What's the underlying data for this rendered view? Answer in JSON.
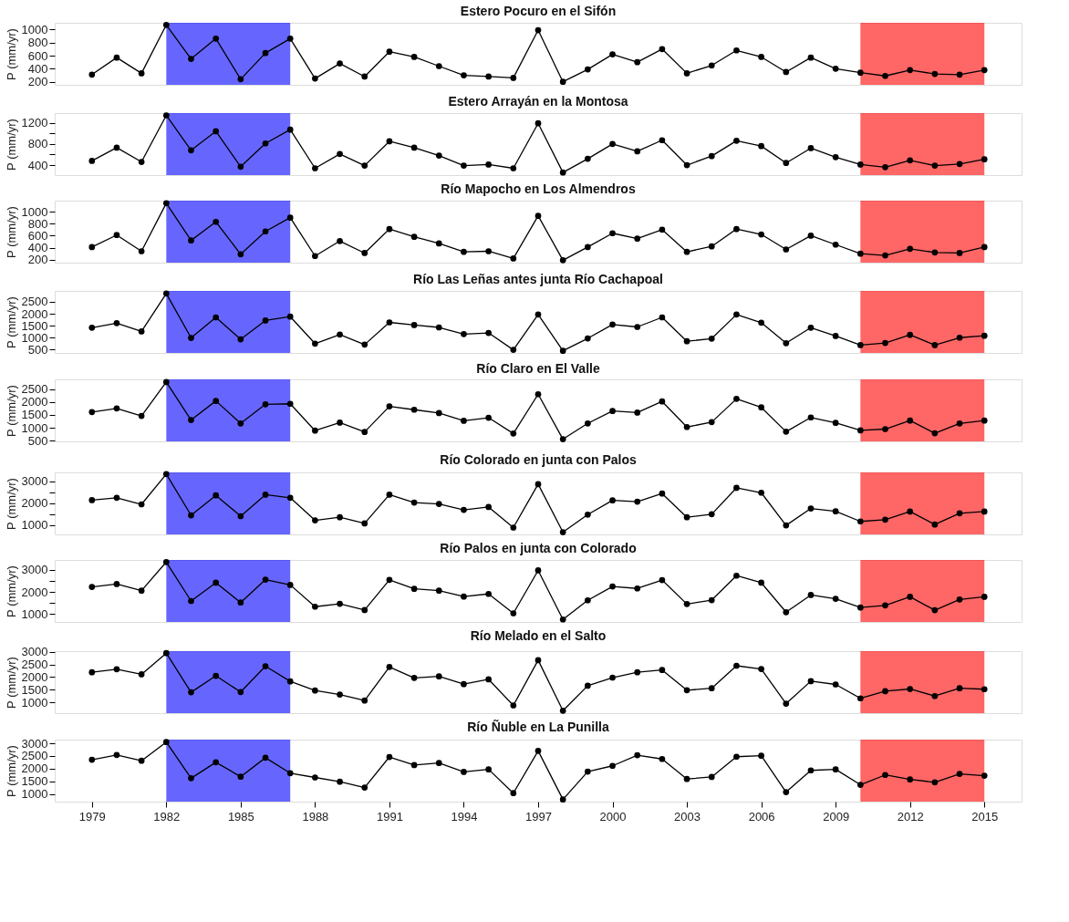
{
  "chart_data": [
    {
      "type": "line",
      "title": "Estero Pocuro en el Sifón",
      "ylabel": "P (mm/yr)",
      "marker": "circle",
      "line_style": "solid",
      "tick_labels": "y",
      "xlim": [
        1977.5,
        2016.5
      ],
      "ylim": [
        154,
        1102
      ],
      "yticks": [
        200,
        400,
        600,
        800,
        1000
      ],
      "x": [
        1979,
        1980,
        1981,
        1982,
        1983,
        1984,
        1985,
        1986,
        1987,
        1988,
        1989,
        1990,
        1991,
        1992,
        1993,
        1994,
        1995,
        1996,
        1997,
        1998,
        1999,
        2000,
        2001,
        2002,
        2003,
        2004,
        2005,
        2006,
        2007,
        2008,
        2009,
        2010,
        2011,
        2012,
        2013,
        2014,
        2015
      ],
      "series": [
        {
          "color": "#000000",
          "values": [
            310,
            570,
            330,
            1070,
            550,
            860,
            240,
            640,
            860,
            250,
            480,
            280,
            660,
            580,
            440,
            300,
            280,
            260,
            990,
            200,
            390,
            620,
            500,
            700,
            330,
            450,
            680,
            580,
            350,
            570,
            400,
            340,
            290,
            380,
            320,
            310,
            380
          ]
        }
      ],
      "bands": [
        {
          "axis": "x",
          "from": 1982,
          "to": 1987,
          "color": "#0000ff"
        },
        {
          "axis": "x",
          "from": 2010,
          "to": 2015,
          "color": "#ff0000"
        }
      ]
    },
    {
      "type": "line",
      "title": "Estero Arrayán en la Montosa",
      "ylabel": "P (mm/yr)",
      "marker": "circle",
      "line_style": "solid",
      "tick_labels": "y",
      "xlim": [
        1977.5,
        2016.5
      ],
      "ylim": [
        211,
        1383
      ],
      "yticks": [
        400,
        {
          "value": 600,
          "label": null
        },
        800,
        {
          "value": 1000,
          "label": null
        },
        1200
      ],
      "x": [
        1979,
        1980,
        1981,
        1982,
        1983,
        1984,
        1985,
        1986,
        1987,
        1988,
        1989,
        1990,
        1991,
        1992,
        1993,
        1994,
        1995,
        1996,
        1997,
        1998,
        1999,
        2000,
        2001,
        2002,
        2003,
        2004,
        2005,
        2006,
        2007,
        2008,
        2009,
        2010,
        2011,
        2012,
        2013,
        2014,
        2015
      ],
      "series": [
        {
          "color": "#000000",
          "values": [
            480,
            730,
            460,
            1340,
            680,
            1040,
            370,
            810,
            1070,
            340,
            610,
            390,
            850,
            730,
            580,
            390,
            410,
            340,
            1190,
            260,
            520,
            800,
            660,
            870,
            400,
            570,
            860,
            760,
            440,
            720,
            550,
            410,
            360,
            490,
            390,
            420,
            510
          ]
        }
      ],
      "bands": [
        {
          "axis": "x",
          "from": 1982,
          "to": 1987,
          "color": "#0000ff"
        },
        {
          "axis": "x",
          "from": 2010,
          "to": 2015,
          "color": "#ff0000"
        }
      ]
    },
    {
      "type": "line",
      "title": "Río Mapocho en Los Almendros",
      "ylabel": "P (mm/yr)",
      "marker": "circle",
      "line_style": "solid",
      "tick_labels": "y",
      "xlim": [
        1977.5,
        2016.5
      ],
      "ylim": [
        150,
        1183
      ],
      "yticks": [
        200,
        400,
        600,
        800,
        1000
      ],
      "x": [
        1979,
        1980,
        1981,
        1982,
        1983,
        1984,
        1985,
        1986,
        1987,
        1988,
        1989,
        1990,
        1991,
        1992,
        1993,
        1994,
        1995,
        1996,
        1997,
        1998,
        1999,
        2000,
        2001,
        2002,
        2003,
        2004,
        2005,
        2006,
        2007,
        2008,
        2009,
        2010,
        2011,
        2012,
        2013,
        2014,
        2015
      ],
      "series": [
        {
          "color": "#000000",
          "values": [
            410,
            610,
            340,
            1140,
            520,
            830,
            290,
            670,
            900,
            260,
            510,
            310,
            710,
            580,
            470,
            330,
            340,
            220,
            930,
            190,
            410,
            640,
            550,
            700,
            330,
            420,
            710,
            620,
            370,
            600,
            450,
            300,
            270,
            380,
            320,
            310,
            410
          ]
        }
      ],
      "bands": [
        {
          "axis": "x",
          "from": 1982,
          "to": 1987,
          "color": "#0000ff"
        },
        {
          "axis": "x",
          "from": 2010,
          "to": 2015,
          "color": "#ff0000"
        }
      ]
    },
    {
      "type": "line",
      "title": "Río Las Leñas antes junta Río Cachapoal",
      "ylabel": "P (mm/yr)",
      "marker": "circle",
      "line_style": "solid",
      "tick_labels": "y",
      "xlim": [
        1977.5,
        2016.5
      ],
      "ylim": [
        361,
        2958
      ],
      "yticks": [
        500,
        1000,
        1500,
        2000,
        2500
      ],
      "x": [
        1979,
        1980,
        1981,
        1982,
        1983,
        1984,
        1985,
        1986,
        1987,
        1988,
        1989,
        1990,
        1991,
        1992,
        1993,
        1994,
        1995,
        1996,
        1997,
        1998,
        1999,
        2000,
        2001,
        2002,
        2003,
        2004,
        2005,
        2006,
        2007,
        2008,
        2009,
        2010,
        2011,
        2012,
        2013,
        2014,
        2015
      ],
      "series": [
        {
          "color": "#000000",
          "values": [
            1420,
            1610,
            1260,
            2850,
            990,
            1850,
            930,
            1720,
            1880,
            750,
            1130,
            710,
            1640,
            1530,
            1430,
            1150,
            1200,
            490,
            1970,
            450,
            970,
            1550,
            1450,
            1850,
            850,
            960,
            1970,
            1630,
            770,
            1420,
            1070,
            690,
            780,
            1120,
            690,
            1000,
            1080
          ]
        }
      ],
      "bands": [
        {
          "axis": "x",
          "from": 1982,
          "to": 1987,
          "color": "#0000ff"
        },
        {
          "axis": "x",
          "from": 2010,
          "to": 2015,
          "color": "#ff0000"
        }
      ]
    },
    {
      "type": "line",
      "title": "Río Claro en El Valle",
      "ylabel": "P (mm/yr)",
      "marker": "circle",
      "line_style": "solid",
      "tick_labels": "y",
      "xlim": [
        1977.5,
        2016.5
      ],
      "ylim": [
        474,
        2874
      ],
      "yticks": [
        500,
        1000,
        1500,
        2000,
        2500
      ],
      "x": [
        1979,
        1980,
        1981,
        1982,
        1983,
        1984,
        1985,
        1986,
        1987,
        1988,
        1989,
        1990,
        1991,
        1992,
        1993,
        1994,
        1995,
        1996,
        1997,
        1998,
        1999,
        2000,
        2001,
        2002,
        2003,
        2004,
        2005,
        2006,
        2007,
        2008,
        2009,
        2010,
        2011,
        2012,
        2013,
        2014,
        2015
      ],
      "series": [
        {
          "color": "#000000",
          "values": [
            1610,
            1750,
            1460,
            2770,
            1300,
            2040,
            1170,
            1910,
            1930,
            890,
            1200,
            840,
            1830,
            1700,
            1570,
            1270,
            1390,
            780,
            2300,
            560,
            1170,
            1650,
            1590,
            2020,
            1030,
            1220,
            2120,
            1790,
            850,
            1400,
            1190,
            900,
            950,
            1280,
            790,
            1170,
            1280
          ]
        }
      ],
      "bands": [
        {
          "axis": "x",
          "from": 1982,
          "to": 1987,
          "color": "#0000ff"
        },
        {
          "axis": "x",
          "from": 2010,
          "to": 2015,
          "color": "#ff0000"
        }
      ]
    },
    {
      "type": "line",
      "title": "Río Colorado en junta con Palos",
      "ylabel": "P (mm/yr)",
      "marker": "circle",
      "line_style": "solid",
      "tick_labels": "y",
      "xlim": [
        1977.5,
        2016.5
      ],
      "ylim": [
        578,
        3406
      ],
      "yticks": [
        1000,
        {
          "value": 1500,
          "label": null
        },
        2000,
        {
          "value": 2500,
          "label": null
        },
        3000
      ],
      "x": [
        1979,
        1980,
        1981,
        1982,
        1983,
        1984,
        1985,
        1986,
        1987,
        1988,
        1989,
        1990,
        1991,
        1992,
        1993,
        1994,
        1995,
        1996,
        1997,
        1998,
        1999,
        2000,
        2001,
        2002,
        2003,
        2004,
        2005,
        2006,
        2007,
        2008,
        2009,
        2010,
        2011,
        2012,
        2013,
        2014,
        2015
      ],
      "series": [
        {
          "color": "#000000",
          "values": [
            2140,
            2250,
            1950,
            3330,
            1450,
            2360,
            1410,
            2390,
            2250,
            1220,
            1360,
            1080,
            2390,
            2030,
            1970,
            1700,
            1830,
            890,
            2870,
            680,
            1480,
            2130,
            2070,
            2440,
            1360,
            1500,
            2700,
            2480,
            990,
            1760,
            1630,
            1170,
            1250,
            1620,
            1030,
            1540,
            1620
          ]
        }
      ],
      "bands": [
        {
          "axis": "x",
          "from": 1982,
          "to": 1987,
          "color": "#0000ff"
        },
        {
          "axis": "x",
          "from": 2010,
          "to": 2015,
          "color": "#ff0000"
        }
      ]
    },
    {
      "type": "line",
      "title": "Río Palos en junta con Colorado",
      "ylabel": "P (mm/yr)",
      "marker": "circle",
      "line_style": "solid",
      "tick_labels": "y",
      "xlim": [
        1977.5,
        2016.5
      ],
      "ylim": [
        636,
        3455
      ],
      "yticks": [
        1000,
        {
          "value": 1500,
          "label": null
        },
        2000,
        {
          "value": 2500,
          "label": null
        },
        3000
      ],
      "x": [
        1979,
        1980,
        1981,
        1982,
        1983,
        1984,
        1985,
        1986,
        1987,
        1988,
        1989,
        1990,
        1991,
        1992,
        1993,
        1994,
        1995,
        1996,
        1997,
        1998,
        1999,
        2000,
        2001,
        2002,
        2003,
        2004,
        2005,
        2006,
        2007,
        2008,
        2009,
        2010,
        2011,
        2012,
        2013,
        2014,
        2015
      ],
      "series": [
        {
          "color": "#000000",
          "values": [
            2230,
            2360,
            2060,
            3360,
            1590,
            2420,
            1520,
            2560,
            2320,
            1330,
            1460,
            1180,
            2550,
            2140,
            2060,
            1790,
            1910,
            1030,
            2980,
            750,
            1620,
            2250,
            2160,
            2540,
            1450,
            1630,
            2740,
            2420,
            1080,
            1860,
            1690,
            1290,
            1390,
            1780,
            1170,
            1660,
            1780
          ]
        }
      ],
      "bands": [
        {
          "axis": "x",
          "from": 1982,
          "to": 1987,
          "color": "#0000ff"
        },
        {
          "axis": "x",
          "from": 2010,
          "to": 2015,
          "color": "#ff0000"
        }
      ]
    },
    {
      "type": "line",
      "title": "Río Melado en el Salto",
      "ylabel": "P (mm/yr)",
      "marker": "circle",
      "line_style": "solid",
      "tick_labels": "y",
      "xlim": [
        1977.5,
        2016.5
      ],
      "ylim": [
        573,
        3027
      ],
      "yticks": [
        1000,
        1500,
        2000,
        2500,
        3000
      ],
      "x": [
        1979,
        1980,
        1981,
        1982,
        1983,
        1984,
        1985,
        1986,
        1987,
        1988,
        1989,
        1990,
        1991,
        1992,
        1993,
        1994,
        1995,
        1996,
        1997,
        1998,
        1999,
        2000,
        2001,
        2002,
        2003,
        2004,
        2005,
        2006,
        2007,
        2008,
        2009,
        2010,
        2011,
        2012,
        2013,
        2014,
        2015
      ],
      "series": [
        {
          "color": "#000000",
          "values": [
            2190,
            2310,
            2110,
            2950,
            1400,
            2050,
            1410,
            2430,
            1830,
            1470,
            1310,
            1070,
            2400,
            1970,
            2030,
            1720,
            1910,
            880,
            2670,
            670,
            1660,
            1980,
            2190,
            2280,
            1480,
            1560,
            2450,
            2320,
            950,
            1840,
            1710,
            1160,
            1440,
            1530,
            1250,
            1560,
            1520
          ]
        }
      ],
      "bands": [
        {
          "axis": "x",
          "from": 1982,
          "to": 1987,
          "color": "#0000ff"
        },
        {
          "axis": "x",
          "from": 2010,
          "to": 2015,
          "color": "#ff0000"
        }
      ]
    },
    {
      "type": "line",
      "title": "Río Ñuble en La Punilla",
      "ylabel": "P (mm/yr)",
      "marker": "circle",
      "line_style": "solid",
      "xlim": [
        1977.5,
        2016.5
      ],
      "ylim": [
        695,
        3146
      ],
      "yticks": [
        1000,
        1500,
        2000,
        2500,
        3000
      ],
      "xticks": [
        1979,
        1982,
        1985,
        1988,
        1991,
        1994,
        1997,
        2000,
        2003,
        2006,
        2009,
        2012,
        2015
      ],
      "x": [
        1979,
        1980,
        1981,
        1982,
        1983,
        1984,
        1985,
        1986,
        1987,
        1988,
        1989,
        1990,
        1991,
        1992,
        1993,
        1994,
        1995,
        1996,
        1997,
        1998,
        1999,
        2000,
        2001,
        2002,
        2003,
        2004,
        2005,
        2006,
        2007,
        2008,
        2009,
        2010,
        2011,
        2012,
        2013,
        2014,
        2015
      ],
      "series": [
        {
          "color": "#000000",
          "values": [
            2350,
            2540,
            2310,
            3050,
            1620,
            2250,
            1680,
            2430,
            1820,
            1650,
            1480,
            1250,
            2460,
            2140,
            2220,
            1870,
            1970,
            1030,
            2700,
            780,
            1880,
            2110,
            2530,
            2380,
            1590,
            1670,
            2470,
            2510,
            1070,
            1930,
            1970,
            1360,
            1750,
            1570,
            1460,
            1790,
            1720
          ]
        }
      ],
      "bands": [
        {
          "axis": "x",
          "from": 1982,
          "to": 1987,
          "color": "#0000ff"
        },
        {
          "axis": "x",
          "from": 2010,
          "to": 2015,
          "color": "#ff0000"
        }
      ]
    }
  ]
}
